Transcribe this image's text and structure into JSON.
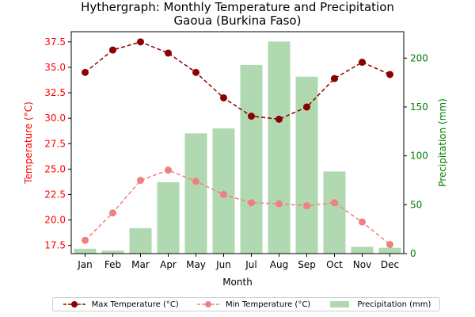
{
  "chart_data": {
    "type": "bar+line",
    "title": "Hythergraph: Monthly Temperature and Precipitation",
    "subtitle": "Gaoua (Burkina Faso)",
    "xlabel": "Month",
    "ylabel_left": "Temperature (°C)",
    "ylabel_right": "Precipitation (mm)",
    "categories": [
      "Jan",
      "Feb",
      "Mar",
      "Apr",
      "May",
      "Jun",
      "Jul",
      "Aug",
      "Sep",
      "Oct",
      "Nov",
      "Dec"
    ],
    "ylim_left": [
      16.7,
      38.5
    ],
    "ylim_right": [
      0,
      227
    ],
    "yticks_left": [
      "17.5",
      "20.0",
      "22.5",
      "25.0",
      "27.5",
      "30.0",
      "32.5",
      "35.0",
      "37.5"
    ],
    "yticks_right": [
      "0",
      "50",
      "100",
      "150",
      "200"
    ],
    "series": [
      {
        "name": "Max Temperature (°C)",
        "axis": "left",
        "kind": "line",
        "color": "#8b0000",
        "linestyle": "dashed",
        "marker": "circle",
        "values": [
          34.5,
          36.7,
          37.5,
          36.4,
          34.5,
          32.0,
          30.2,
          29.9,
          31.1,
          33.9,
          35.5,
          34.3
        ]
      },
      {
        "name": "Min Temperature (°C)",
        "axis": "left",
        "kind": "line",
        "color": "#f08080",
        "linestyle": "dashed",
        "marker": "circle",
        "values": [
          18.0,
          20.7,
          23.9,
          24.9,
          23.8,
          22.5,
          21.7,
          21.6,
          21.4,
          21.7,
          19.8,
          17.6
        ]
      },
      {
        "name": "Precipitation (mm)",
        "axis": "right",
        "kind": "bar",
        "color": "#b1d9b1",
        "values": [
          5,
          3,
          26,
          73,
          123,
          128,
          193,
          217,
          181,
          84,
          7,
          6
        ]
      }
    ],
    "legend_position": "bottom-center",
    "grid": false
  }
}
